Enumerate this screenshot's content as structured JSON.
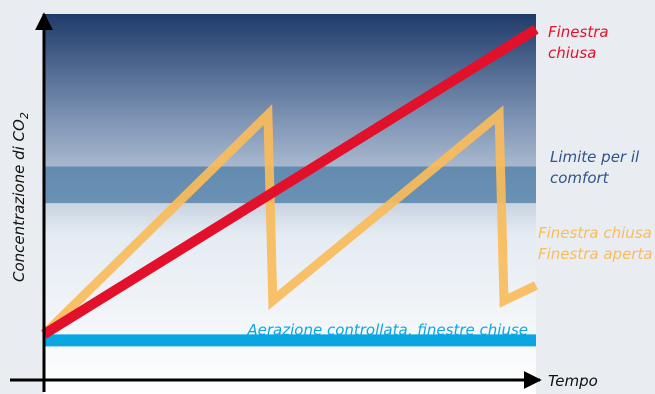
{
  "chart_data": {
    "type": "line",
    "ylabel": "Concentrazione di CO",
    "ylabel_sub": "2",
    "xlabel": "Tempo",
    "series": [
      {
        "name_lines": [
          "Finestra",
          "chiusa"
        ],
        "color": "#e3102b",
        "points": [
          [
            0,
            0
          ],
          [
            100,
            100
          ]
        ]
      },
      {
        "name_lines": [
          "Finestra chiusa",
          "Finestra aperta"
        ],
        "color": "#f9bc5b",
        "points": [
          [
            0,
            0
          ],
          [
            45.5,
            72
          ],
          [
            46.5,
            11
          ],
          [
            92.5,
            72
          ],
          [
            93.5,
            11
          ],
          [
            100,
            16
          ]
        ]
      },
      {
        "name_lines": [
          "Aerazione controllata, finestre chiuse"
        ],
        "color": "#0aa6e4",
        "points": [
          [
            0,
            -2
          ],
          [
            100,
            -2
          ]
        ]
      }
    ],
    "comfort_band": {
      "label_lines": [
        "Limite per il",
        "comfort"
      ],
      "color": "#4f7fa8",
      "y_range": [
        43,
        55
      ]
    },
    "ylim": [
      -15,
      105
    ],
    "xlim": [
      0,
      100
    ],
    "ticks": false
  }
}
